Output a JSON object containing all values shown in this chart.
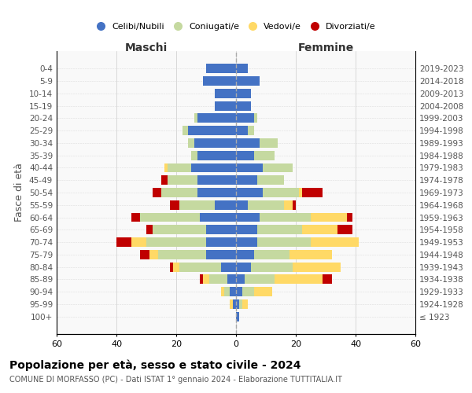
{
  "age_groups": [
    "100+",
    "95-99",
    "90-94",
    "85-89",
    "80-84",
    "75-79",
    "70-74",
    "65-69",
    "60-64",
    "55-59",
    "50-54",
    "45-49",
    "40-44",
    "35-39",
    "30-34",
    "25-29",
    "20-24",
    "15-19",
    "10-14",
    "5-9",
    "0-4"
  ],
  "birth_years": [
    "≤ 1923",
    "1924-1928",
    "1929-1933",
    "1934-1938",
    "1939-1943",
    "1944-1948",
    "1949-1953",
    "1954-1958",
    "1959-1963",
    "1964-1968",
    "1969-1973",
    "1974-1978",
    "1979-1983",
    "1984-1988",
    "1989-1993",
    "1994-1998",
    "1999-2003",
    "2004-2008",
    "2009-2013",
    "2014-2018",
    "2019-2023"
  ],
  "colors": {
    "celibi": "#4472C4",
    "coniugati": "#c5d9a0",
    "vedovi": "#ffd966",
    "divorziati": "#c00000",
    "background": "#ffffff",
    "grid": "#cccccc"
  },
  "maschi": {
    "celibi": [
      0,
      1,
      2,
      3,
      5,
      10,
      10,
      10,
      12,
      7,
      13,
      13,
      15,
      13,
      14,
      16,
      13,
      7,
      7,
      11,
      10
    ],
    "coniugati": [
      0,
      0,
      2,
      6,
      14,
      16,
      20,
      18,
      20,
      12,
      12,
      10,
      8,
      2,
      2,
      2,
      1,
      0,
      0,
      0,
      0
    ],
    "vedovi": [
      0,
      1,
      1,
      2,
      2,
      3,
      5,
      0,
      0,
      0,
      0,
      0,
      1,
      0,
      0,
      0,
      0,
      0,
      0,
      0,
      0
    ],
    "divorziati": [
      0,
      0,
      0,
      1,
      1,
      3,
      5,
      2,
      3,
      3,
      3,
      2,
      0,
      0,
      0,
      0,
      0,
      0,
      0,
      0,
      0
    ]
  },
  "femmine": {
    "celibi": [
      1,
      1,
      2,
      3,
      5,
      6,
      7,
      7,
      8,
      4,
      9,
      7,
      9,
      6,
      8,
      4,
      6,
      5,
      5,
      8,
      4
    ],
    "coniugati": [
      0,
      1,
      4,
      10,
      14,
      12,
      18,
      15,
      17,
      12,
      12,
      9,
      10,
      7,
      6,
      2,
      1,
      0,
      0,
      0,
      0
    ],
    "vedovi": [
      0,
      2,
      6,
      16,
      16,
      14,
      16,
      12,
      12,
      3,
      1,
      0,
      0,
      0,
      0,
      0,
      0,
      0,
      0,
      0,
      0
    ],
    "divorziati": [
      0,
      0,
      0,
      3,
      0,
      0,
      0,
      5,
      2,
      1,
      7,
      0,
      0,
      0,
      0,
      0,
      0,
      0,
      0,
      0,
      0
    ]
  },
  "xlim": 60,
  "title": "Popolazione per età, sesso e stato civile - 2024",
  "subtitle": "COMUNE DI MORFASSO (PC) - Dati ISTAT 1° gennaio 2024 - Elaborazione TUTTITALIA.IT",
  "xlabel_left": "Maschi",
  "xlabel_right": "Femmine",
  "ylabel_left": "Fasce di età",
  "legend_labels": [
    "Celibi/Nubili",
    "Coniugati/e",
    "Vedovi/e",
    "Divorziati/e"
  ]
}
